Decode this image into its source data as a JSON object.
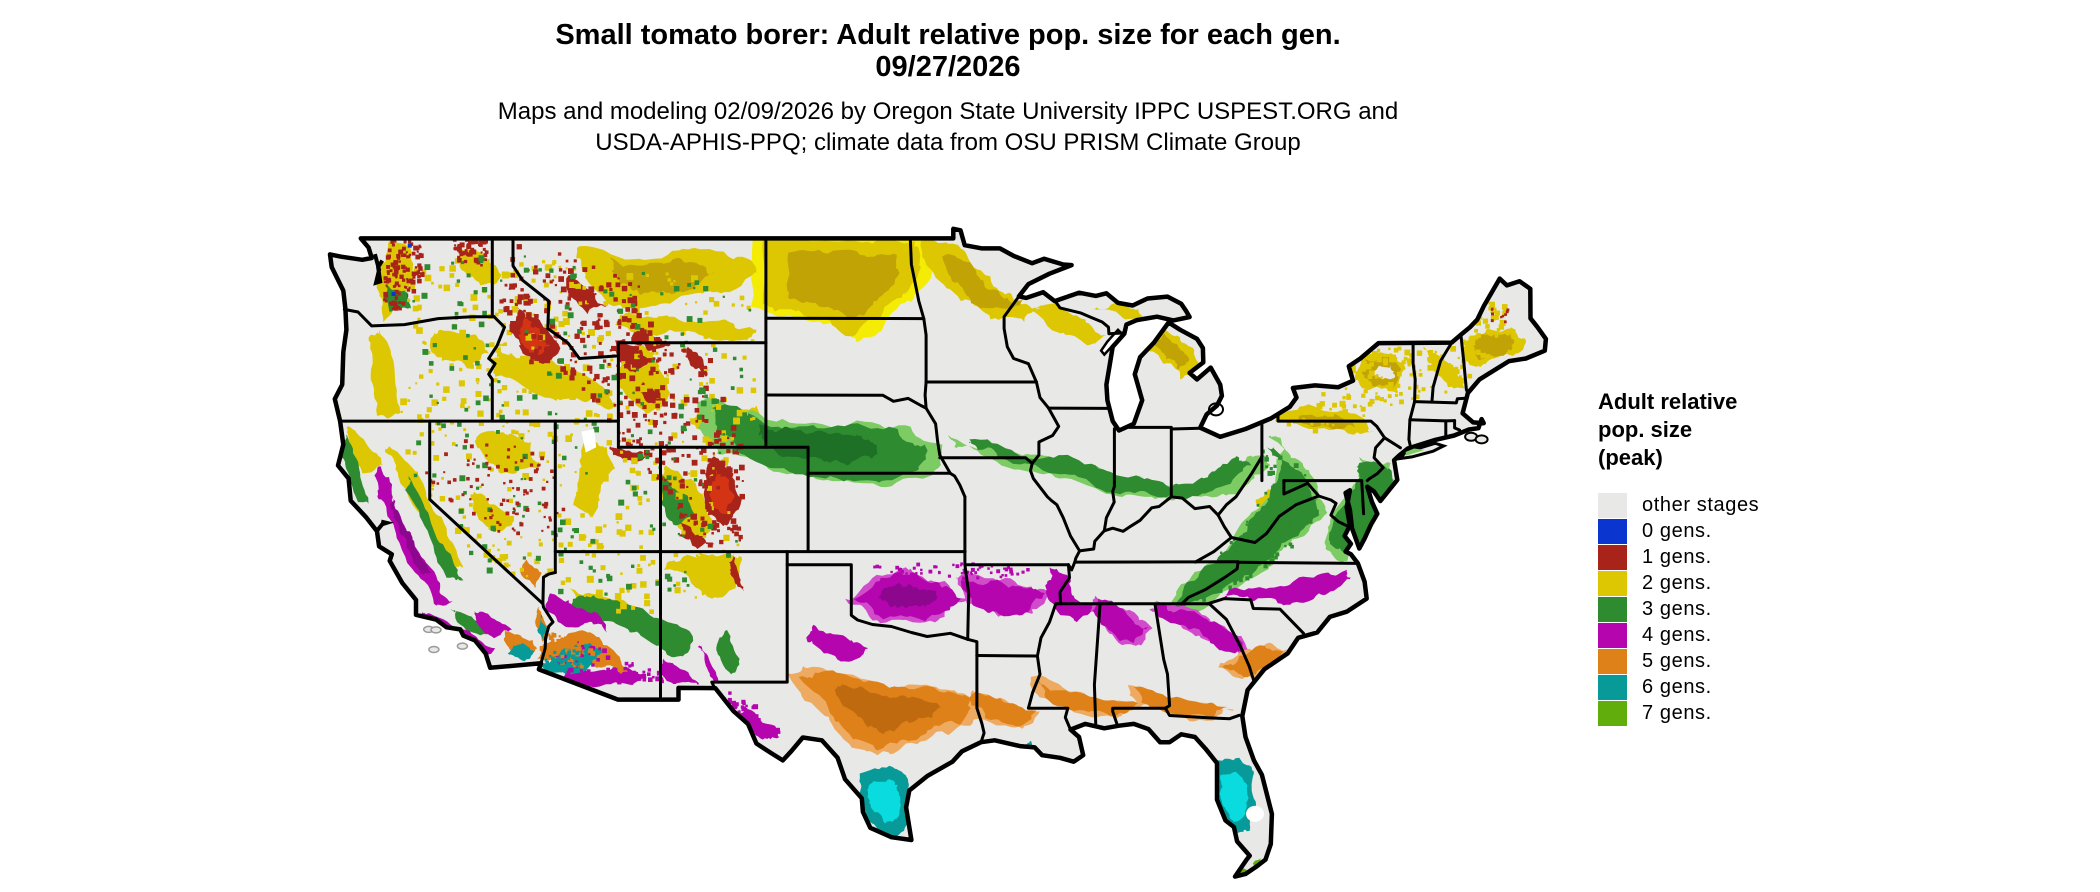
{
  "header": {
    "title_line1": "Small tomato borer: Adult relative pop. size for each gen.",
    "title_line2": "09/27/2026",
    "subtitle_line1": "Maps and modeling 02/09/2026 by Oregon State University IPPC USPEST.ORG and",
    "subtitle_line2": "USDA-APHIS-PPQ; climate data from OSU PRISM Climate Group"
  },
  "legend": {
    "title_lines": [
      "Adult relative",
      "pop. size",
      "(peak)"
    ],
    "items": [
      {
        "label": "other stages",
        "color": "#e8e8e6"
      },
      {
        "label": "0 gens.",
        "color": "#0a35cf"
      },
      {
        "label": "1 gens.",
        "color": "#a8241a"
      },
      {
        "label": "2 gens.",
        "color": "#ddc703"
      },
      {
        "label": "3 gens.",
        "color": "#2e8b30"
      },
      {
        "label": "4 gens.",
        "color": "#b505ae"
      },
      {
        "label": "5 gens.",
        "color": "#de8118"
      },
      {
        "label": "6 gens.",
        "color": "#089a98"
      },
      {
        "label": "7 gens.",
        "color": "#60ad0c"
      }
    ]
  },
  "map": {
    "region": "Contiguous United States",
    "land_color": "#e8e8e6",
    "border_color": "#000000",
    "water_color": "#ffffff"
  }
}
